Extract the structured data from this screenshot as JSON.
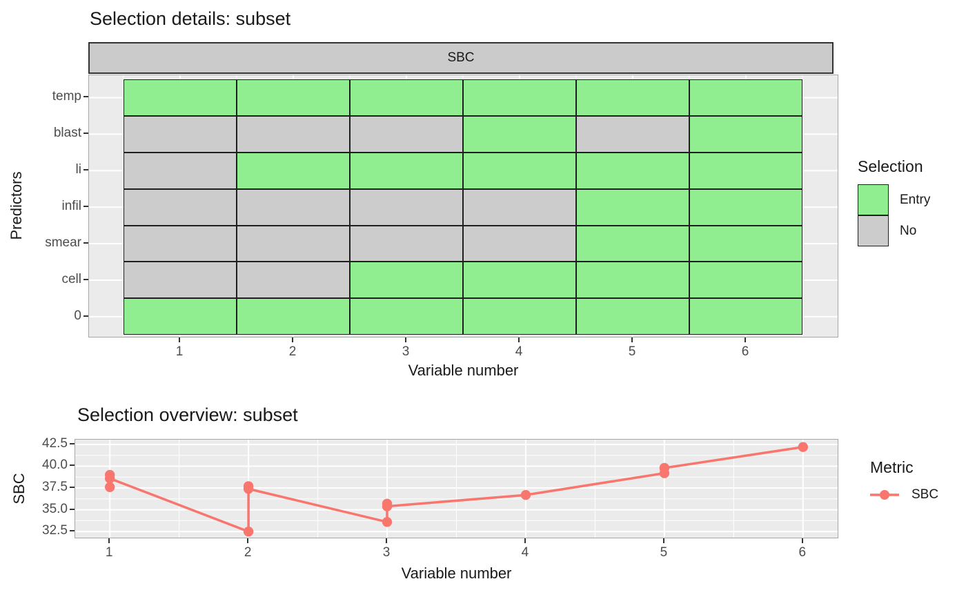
{
  "colors": {
    "background": "#FFFFFF",
    "panel_bg": "#EBEBEB",
    "strip_bg": "#CBCBCB",
    "entry": "#90EE90",
    "no": "#CCCCCC",
    "line": "#F8766D",
    "grid": "#FFFFFF",
    "tick_text": "#4D4D4D",
    "title_text": "#1A1A1A",
    "tile_border": "#1F1F1F",
    "panel_border": "#A6A6A6"
  },
  "chart_data": [
    {
      "type": "heatmap",
      "title": "Selection details: subset",
      "facet_label": "SBC",
      "xlabel": "Variable number",
      "ylabel": "Predictors",
      "x_ticks": [
        "1",
        "2",
        "3",
        "4",
        "5",
        "6"
      ],
      "y_categories": [
        "temp",
        "blast",
        "li",
        "infil",
        "smear",
        "cell",
        "0"
      ],
      "legend": {
        "title": "Selection",
        "position": "right",
        "entries": [
          {
            "label": "Entry",
            "color": "#90EE90"
          },
          {
            "label": "No",
            "color": "#CCCCCC"
          }
        ]
      },
      "values": [
        [
          "Entry",
          "Entry",
          "Entry",
          "Entry",
          "Entry",
          "Entry"
        ],
        [
          "No",
          "No",
          "No",
          "Entry",
          "No",
          "Entry"
        ],
        [
          "No",
          "Entry",
          "Entry",
          "Entry",
          "Entry",
          "Entry"
        ],
        [
          "No",
          "No",
          "No",
          "No",
          "Entry",
          "Entry"
        ],
        [
          "No",
          "No",
          "No",
          "No",
          "Entry",
          "Entry"
        ],
        [
          "No",
          "No",
          "Entry",
          "Entry",
          "Entry",
          "Entry"
        ],
        [
          "Entry",
          "Entry",
          "Entry",
          "Entry",
          "Entry",
          "Entry"
        ]
      ]
    },
    {
      "type": "line",
      "title": "Selection overview: subset",
      "xlabel": "Variable number",
      "ylabel": "SBC",
      "x_ticks": [
        1,
        2,
        3,
        4,
        5,
        6
      ],
      "y_ticks": [
        32.5,
        35.0,
        37.5,
        40.0,
        42.5
      ],
      "y_tick_labels": [
        "32.5",
        "35.0",
        "37.5",
        "40.0",
        "42.5"
      ],
      "xlim": [
        0.75,
        6.25
      ],
      "ylim": [
        31.8,
        43.05
      ],
      "grid": true,
      "legend": {
        "title": "Metric",
        "position": "right",
        "entries": [
          {
            "label": "SBC",
            "color": "#F8766D"
          }
        ]
      },
      "series": [
        {
          "name": "SBC",
          "color": "#F8766D",
          "points": [
            [
              1,
              37.6
            ],
            [
              1,
              39.0
            ],
            [
              1,
              38.6
            ],
            [
              2,
              32.5
            ],
            [
              2,
              37.7
            ],
            [
              2,
              37.4
            ],
            [
              3,
              33.6
            ],
            [
              3,
              35.7
            ],
            [
              3,
              35.4
            ],
            [
              4,
              36.7
            ],
            [
              5,
              39.2
            ],
            [
              5,
              39.8
            ],
            [
              6,
              42.2
            ]
          ]
        }
      ]
    }
  ]
}
